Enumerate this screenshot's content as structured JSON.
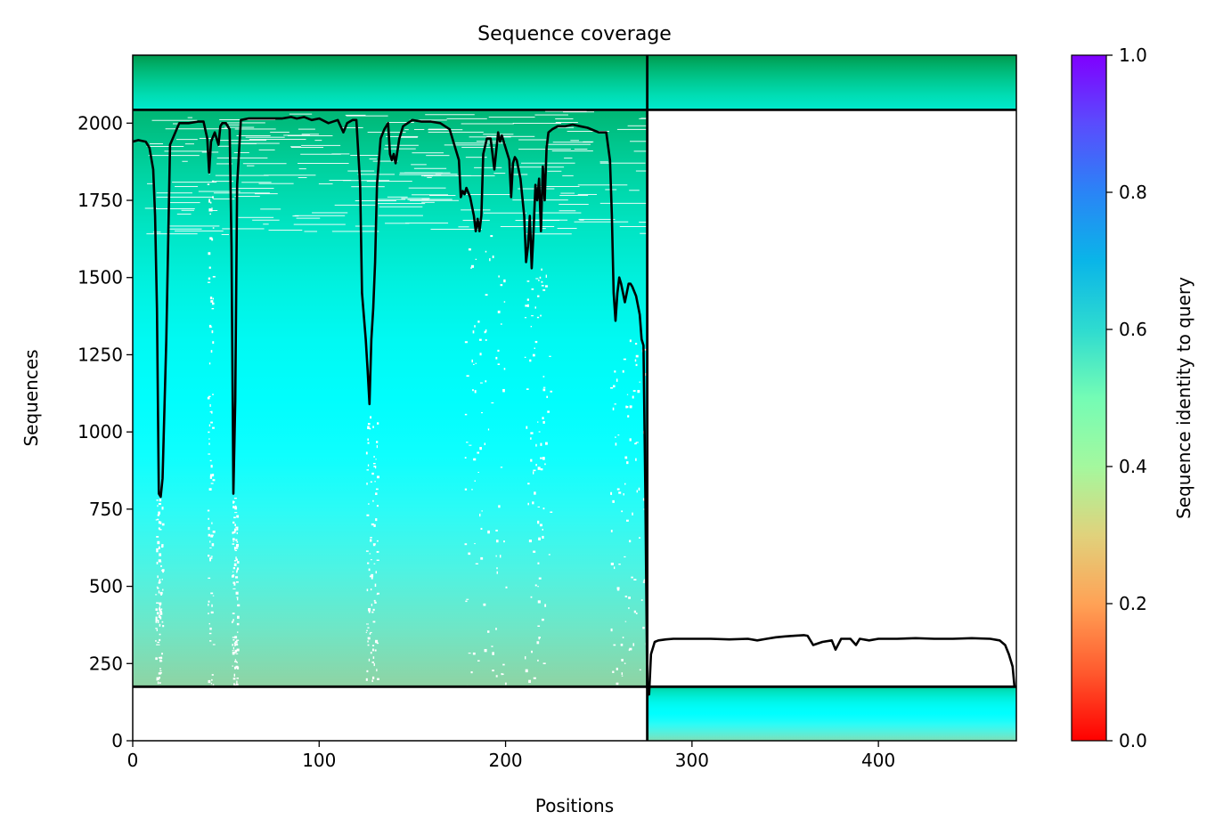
{
  "chart_data": {
    "type": "heatmap",
    "title": "Sequence coverage",
    "xlabel": "Positions",
    "ylabel": "Sequences",
    "xlim": [
      0,
      474
    ],
    "ylim": [
      0,
      2220
    ],
    "x_ticks": [
      0,
      100,
      200,
      300,
      400
    ],
    "y_ticks": [
      0,
      250,
      500,
      750,
      1000,
      1250,
      1500,
      1750,
      2000
    ],
    "colorbar": {
      "label": "Sequence identity to query",
      "colormap": "rainbow_r",
      "range": [
        0,
        1
      ],
      "ticks": [
        "0.0",
        "0.2",
        "0.4",
        "0.6",
        "0.8",
        "1.0"
      ]
    },
    "segments": [
      {
        "name": "",
        "x_range": [
          0,
          276
        ],
        "row_range": [
          175,
          2043
        ],
        "identity_top": 0.85,
        "identity_bottom": 0.22
      },
      {
        "name": "",
        "x_range": [
          0,
          276
        ],
        "row_range": [
          2043,
          2220
        ],
        "identity_top": 0.9,
        "identity_bottom": 0.7
      },
      {
        "name": "",
        "x_range": [
          276,
          474
        ],
        "row_range": [
          2043,
          2220
        ],
        "identity_top": 0.9,
        "identity_bottom": 0.7
      },
      {
        "name": "",
        "x_range": [
          276,
          474
        ],
        "row_range": [
          0,
          175
        ],
        "identity_top": 0.78,
        "identity_bottom": 0.25
      }
    ],
    "boundaries": {
      "x": [
        276
      ],
      "y": [
        175,
        2043
      ]
    },
    "coverage_line": {
      "color": "#000000",
      "x": [
        0,
        3,
        7,
        9,
        11,
        12,
        13,
        14,
        15,
        16,
        18,
        20,
        25,
        30,
        35,
        38,
        40,
        41,
        42,
        44,
        46,
        47,
        48,
        50,
        52,
        53,
        54,
        55,
        56,
        58,
        62,
        70,
        80,
        85,
        88,
        92,
        96,
        100,
        105,
        110,
        113,
        115,
        118,
        120,
        122,
        123,
        125,
        126,
        127,
        128,
        129,
        130,
        131,
        133,
        135,
        137,
        138,
        139,
        140,
        141,
        143,
        145,
        150,
        155,
        160,
        165,
        170,
        175,
        176,
        177,
        178,
        179,
        181,
        183,
        184,
        185,
        186,
        187,
        188,
        190,
        192,
        194,
        196,
        197,
        198,
        200,
        202,
        203,
        204,
        205,
        206,
        208,
        210,
        211,
        212,
        213,
        214,
        215,
        216,
        217,
        218,
        219,
        220,
        221,
        222,
        223,
        225,
        228,
        232,
        236,
        240,
        244,
        248,
        250,
        254,
        256,
        257,
        258,
        259,
        260,
        261,
        262,
        263,
        264,
        265,
        266,
        267,
        268,
        270,
        272,
        273,
        274,
        275,
        276,
        277,
        278,
        280,
        282,
        286,
        290,
        300,
        310,
        320,
        330,
        335,
        340,
        345,
        350,
        355,
        360,
        362,
        365,
        370,
        375,
        377,
        380,
        385,
        388,
        390,
        395,
        400,
        410,
        420,
        430,
        440,
        450,
        460,
        465,
        468,
        470,
        472,
        473,
        474
      ],
      "y": [
        1940,
        1945,
        1940,
        1920,
        1850,
        1700,
        1400,
        800,
        790,
        850,
        1300,
        1930,
        2000,
        2000,
        2005,
        2005,
        1950,
        1840,
        1940,
        1970,
        1930,
        1990,
        2000,
        2000,
        1980,
        1600,
        800,
        1100,
        1800,
        2010,
        2015,
        2015,
        2015,
        2020,
        2015,
        2020,
        2010,
        2015,
        2000,
        2010,
        1970,
        2000,
        2010,
        2010,
        1800,
        1450,
        1300,
        1200,
        1090,
        1300,
        1400,
        1550,
        1800,
        1950,
        1980,
        2000,
        1900,
        1880,
        1900,
        1870,
        1950,
        1990,
        2010,
        2005,
        2005,
        2000,
        1980,
        1880,
        1760,
        1780,
        1770,
        1790,
        1760,
        1700,
        1650,
        1690,
        1650,
        1700,
        1900,
        1950,
        1950,
        1850,
        1970,
        1940,
        1960,
        1920,
        1880,
        1760,
        1870,
        1890,
        1880,
        1820,
        1700,
        1550,
        1600,
        1700,
        1530,
        1650,
        1800,
        1750,
        1820,
        1650,
        1860,
        1750,
        1920,
        1970,
        1980,
        1990,
        1990,
        1995,
        1990,
        1985,
        1975,
        1970,
        1970,
        1880,
        1700,
        1450,
        1360,
        1450,
        1500,
        1480,
        1450,
        1420,
        1450,
        1480,
        1480,
        1470,
        1440,
        1380,
        1300,
        1280,
        800,
        170,
        150,
        280,
        320,
        325,
        328,
        330,
        330,
        330,
        328,
        330,
        325,
        330,
        335,
        338,
        340,
        342,
        340,
        310,
        320,
        325,
        295,
        330,
        330,
        310,
        330,
        325,
        330,
        330,
        332,
        330,
        330,
        332,
        330,
        325,
        310,
        280,
        240,
        175
      ]
    }
  }
}
